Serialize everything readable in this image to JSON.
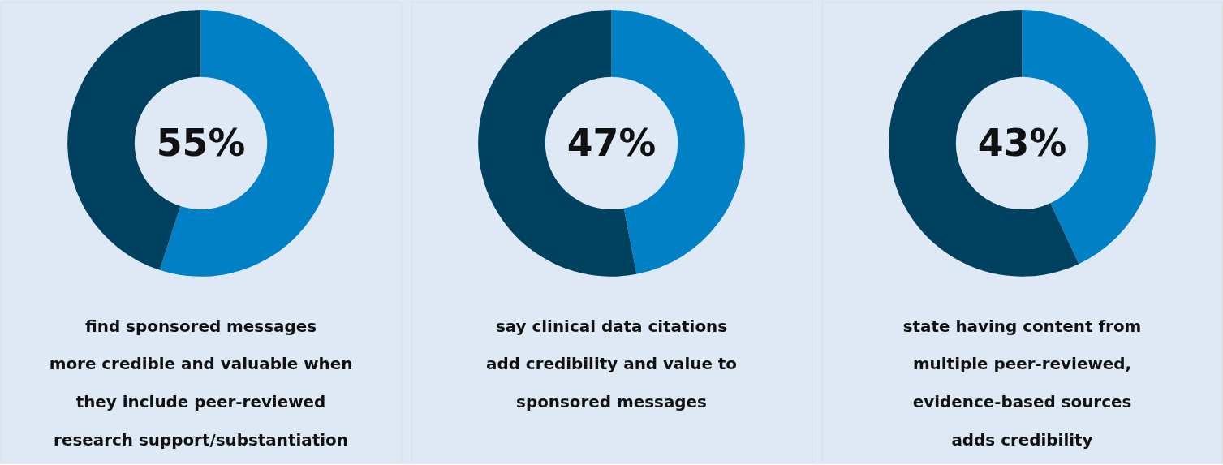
{
  "chart_data": [
    {
      "type": "donut",
      "title": "55%",
      "categories": [
        null,
        null
      ],
      "values": [
        55,
        45
      ],
      "colors": [
        "#0081c6",
        "#00415f"
      ],
      "annotations": [
        "find sponsored messages",
        "more credible and valuable when",
        "they include peer-reviewed",
        "research support/substantiation"
      ]
    },
    {
      "type": "donut",
      "title": "47%",
      "categories": [
        null,
        null
      ],
      "values": [
        47,
        53
      ],
      "colors": [
        "#0081c6",
        "#00415f"
      ],
      "annotations": [
        "say clinical data citations",
        "add credibility and value to",
        "sponsored messages"
      ]
    },
    {
      "type": "donut",
      "title": "43%",
      "categories": [
        null,
        null
      ],
      "values": [
        43,
        57
      ],
      "colors": [
        "#0081c6",
        "#00415f"
      ],
      "annotations": [
        "state having content from",
        "multiple peer-reviewed,",
        "evidence-based sources",
        "adds credibility"
      ]
    }
  ]
}
